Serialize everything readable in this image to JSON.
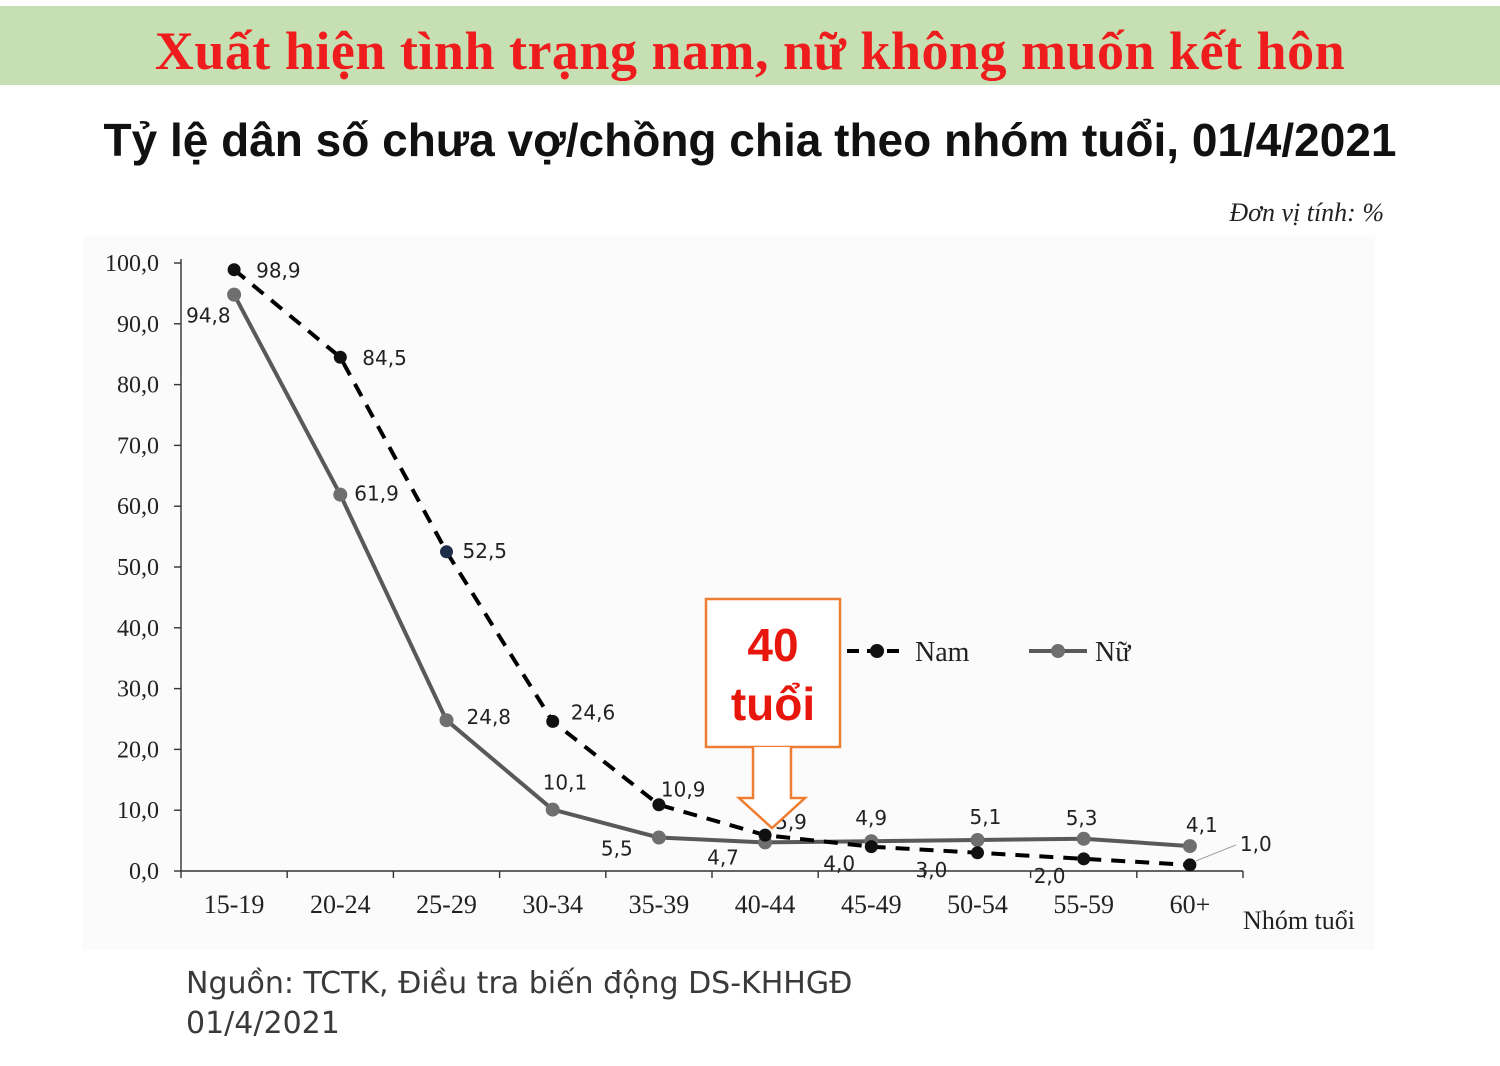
{
  "header": {
    "title": "Xuất hiện tình trạng nam, nữ không muốn kết hôn",
    "subtitle": "Tỷ lệ dân số chưa vợ/chồng chia theo nhóm tuổi, 01/4/2021",
    "unit": "Đơn vị tính: %"
  },
  "source": {
    "line1": "Nguồn:  TCTK, Điều tra biến động DS-KHHGĐ",
    "line2": "01/4/2021"
  },
  "callout": {
    "line1": "40",
    "line2": "tuổi"
  },
  "colors": {
    "banner_bg": "#c6dfb3",
    "title_red": "#ee1c1c",
    "nam_line": "#000000",
    "nu_line": "#595959",
    "callout_border": "#ed7d31",
    "callout_text": "#e8170d"
  },
  "chart_data": {
    "type": "line",
    "categories": [
      "15-19",
      "20-24",
      "25-29",
      "30-34",
      "35-39",
      "40-44",
      "45-49",
      "50-54",
      "55-59",
      "60+"
    ],
    "xlabel": "Nhóm tuổi",
    "ylabel": "",
    "ylim": [
      0,
      100
    ],
    "yticks": [
      "0,0",
      "10,0",
      "20,0",
      "30,0",
      "40,0",
      "50,0",
      "60,0",
      "70,0",
      "80,0",
      "90,0",
      "100,0"
    ],
    "legend_position": "right-middle",
    "series": [
      {
        "name": "Nam",
        "style": "dashed",
        "values": [
          98.9,
          84.5,
          52.5,
          24.6,
          10.9,
          5.9,
          4.0,
          3.0,
          2.0,
          1.0
        ],
        "labels": [
          "98,9",
          "84,5",
          "52,5",
          "24,6",
          "10,9",
          "5,9",
          "4,0",
          "3,0",
          "2,0",
          "1,0"
        ]
      },
      {
        "name": "Nữ",
        "style": "solid",
        "values": [
          94.8,
          61.9,
          24.8,
          10.1,
          5.5,
          4.7,
          4.9,
          5.1,
          5.3,
          4.1
        ],
        "labels": [
          "94,8",
          "61,9",
          "24,8",
          "10,1",
          "5,5",
          "4,7",
          "4,9",
          "5,1",
          "5,3",
          "4,1"
        ]
      }
    ]
  }
}
